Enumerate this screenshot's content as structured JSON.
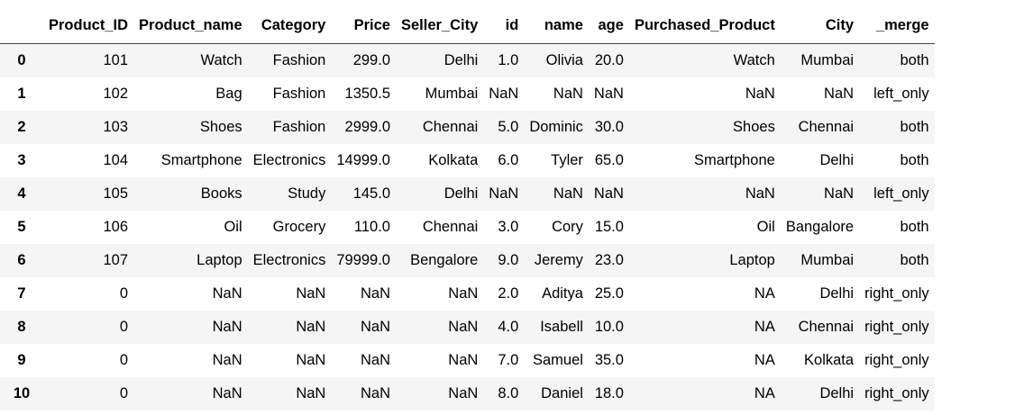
{
  "table": {
    "columns": [
      "Product_ID",
      "Product_name",
      "Category",
      "Price",
      "Seller_City",
      "id",
      "name",
      "age",
      "Purchased_Product",
      "City",
      "_merge"
    ],
    "rows": [
      {
        "index": "0",
        "cells": [
          "101",
          "Watch",
          "Fashion",
          "299.0",
          "Delhi",
          "1.0",
          "Olivia",
          "20.0",
          "Watch",
          "Mumbai",
          "both"
        ]
      },
      {
        "index": "1",
        "cells": [
          "102",
          "Bag",
          "Fashion",
          "1350.5",
          "Mumbai",
          "NaN",
          "NaN",
          "NaN",
          "NaN",
          "NaN",
          "left_only"
        ]
      },
      {
        "index": "2",
        "cells": [
          "103",
          "Shoes",
          "Fashion",
          "2999.0",
          "Chennai",
          "5.0",
          "Dominic",
          "30.0",
          "Shoes",
          "Chennai",
          "both"
        ]
      },
      {
        "index": "3",
        "cells": [
          "104",
          "Smartphone",
          "Electronics",
          "14999.0",
          "Kolkata",
          "6.0",
          "Tyler",
          "65.0",
          "Smartphone",
          "Delhi",
          "both"
        ]
      },
      {
        "index": "4",
        "cells": [
          "105",
          "Books",
          "Study",
          "145.0",
          "Delhi",
          "NaN",
          "NaN",
          "NaN",
          "NaN",
          "NaN",
          "left_only"
        ]
      },
      {
        "index": "5",
        "cells": [
          "106",
          "Oil",
          "Grocery",
          "110.0",
          "Chennai",
          "3.0",
          "Cory",
          "15.0",
          "Oil",
          "Bangalore",
          "both"
        ]
      },
      {
        "index": "6",
        "cells": [
          "107",
          "Laptop",
          "Electronics",
          "79999.0",
          "Bengalore",
          "9.0",
          "Jeremy",
          "23.0",
          "Laptop",
          "Mumbai",
          "both"
        ]
      },
      {
        "index": "7",
        "cells": [
          "0",
          "NaN",
          "NaN",
          "NaN",
          "NaN",
          "2.0",
          "Aditya",
          "25.0",
          "NA",
          "Delhi",
          "right_only"
        ]
      },
      {
        "index": "8",
        "cells": [
          "0",
          "NaN",
          "NaN",
          "NaN",
          "NaN",
          "4.0",
          "Isabell",
          "10.0",
          "NA",
          "Chennai",
          "right_only"
        ]
      },
      {
        "index": "9",
        "cells": [
          "0",
          "NaN",
          "NaN",
          "NaN",
          "NaN",
          "7.0",
          "Samuel",
          "35.0",
          "NA",
          "Kolkata",
          "right_only"
        ]
      },
      {
        "index": "10",
        "cells": [
          "0",
          "NaN",
          "NaN",
          "NaN",
          "NaN",
          "8.0",
          "Daniel",
          "18.0",
          "NA",
          "Delhi",
          "right_only"
        ]
      }
    ]
  }
}
